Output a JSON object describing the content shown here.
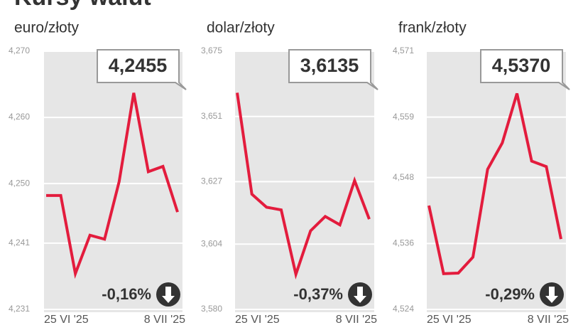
{
  "title": "Kursy walut",
  "chart_data": [
    {
      "type": "line",
      "title": "euro/złoty",
      "categories": [
        "25 VI '25",
        null,
        null,
        null,
        null,
        null,
        null,
        null,
        null,
        "8 VII '25"
      ],
      "values": [
        4.2482,
        4.2482,
        4.2364,
        4.2422,
        4.2416,
        4.2503,
        4.2637,
        4.2518,
        4.2526,
        4.2457
      ],
      "color": "#e31c3d",
      "ylim": [
        4.231,
        4.27
      ],
      "yticks": [
        {
          "value": 4.231,
          "label": "4,231"
        },
        {
          "value": 4.241,
          "label": "4,241"
        },
        {
          "value": 4.25,
          "label": "4,250"
        },
        {
          "value": 4.26,
          "label": "4,260"
        },
        {
          "value": 4.27,
          "label": "4,270"
        }
      ],
      "grid": true,
      "annotations": {
        "current": "4,2455",
        "change": "-0,16%"
      }
    },
    {
      "type": "line",
      "title": "dolar/złoty",
      "categories": [
        "25 VI '25",
        null,
        null,
        null,
        null,
        null,
        null,
        null,
        null,
        "8 VII '25"
      ],
      "values": [
        3.6597,
        3.6224,
        3.6176,
        3.6166,
        3.5929,
        3.6089,
        3.6142,
        3.6111,
        3.6274,
        3.6132
      ],
      "color": "#e31c3d",
      "ylim": [
        3.58,
        3.675
      ],
      "yticks": [
        {
          "value": 3.58,
          "label": "3,580"
        },
        {
          "value": 3.604,
          "label": "3,604"
        },
        {
          "value": 3.627,
          "label": "3,627"
        },
        {
          "value": 3.651,
          "label": "3,651"
        },
        {
          "value": 3.675,
          "label": "3,675"
        }
      ],
      "grid": true,
      "annotations": {
        "current": "3,6135",
        "change": "-0,37%"
      }
    },
    {
      "type": "line",
      "title": "frank/złoty",
      "categories": [
        "25 VI '25",
        null,
        null,
        null,
        null,
        null,
        null,
        null,
        null,
        "8 VII '25"
      ],
      "values": [
        4.5429,
        4.5305,
        4.5306,
        4.5335,
        4.5495,
        4.5543,
        4.5633,
        4.551,
        4.55,
        4.5368
      ],
      "color": "#e31c3d",
      "ylim": [
        4.524,
        4.571
      ],
      "yticks": [
        {
          "value": 4.524,
          "label": "4,524"
        },
        {
          "value": 4.536,
          "label": "4,536"
        },
        {
          "value": 4.548,
          "label": "4,548"
        },
        {
          "value": 4.559,
          "label": "4,559"
        },
        {
          "value": 4.571,
          "label": "4,571"
        }
      ],
      "grid": true,
      "annotations": {
        "current": "4,5370",
        "change": "-0,29%"
      }
    }
  ]
}
